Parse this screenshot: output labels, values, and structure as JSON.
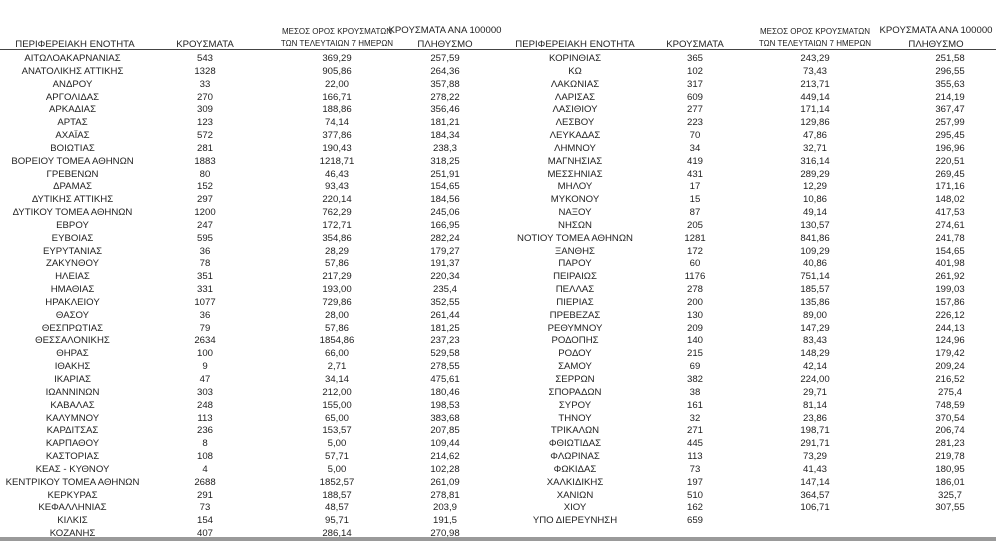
{
  "headers": {
    "region": "ΠΕΡΙΦΕΡΕΙΑΚΗ ΕΝΟΤΗΤΑ",
    "cases": "ΚΡΟΥΣΜΑΤΑ",
    "avg_line1": "ΜΕΣΟΣ ΟΡΟΣ ΚΡΟΥΣΜΑΤΩΝ",
    "avg_line2": "ΤΩΝ ΤΕΛΕΥΤΑΙΩΝ 7 ΗΜΕΡΩΝ",
    "per_line1": "ΚΡΟΥΣΜΑΤΑ ΑΝΑ 100000",
    "per_line2": "ΠΛΗΘΥΣΜΟ"
  },
  "left_rows": [
    [
      "ΑΙΤΩΛΟΑΚΑΡΝΑΝΙΑΣ",
      "543",
      "369,29",
      "257,59"
    ],
    [
      "ΑΝΑΤΟΛΙΚΗΣ ΑΤΤΙΚΗΣ",
      "1328",
      "905,86",
      "264,36"
    ],
    [
      "ΑΝΔΡΟΥ",
      "33",
      "22,00",
      "357,88"
    ],
    [
      "ΑΡΓΟΛΙΔΑΣ",
      "270",
      "166,71",
      "278,22"
    ],
    [
      "ΑΡΚΑΔΙΑΣ",
      "309",
      "188,86",
      "356,46"
    ],
    [
      "ΑΡΤΑΣ",
      "123",
      "74,14",
      "181,21"
    ],
    [
      "ΑΧΑΪΑΣ",
      "572",
      "377,86",
      "184,34"
    ],
    [
      "ΒΟΙΩΤΙΑΣ",
      "281",
      "190,43",
      "238,3"
    ],
    [
      "ΒΟΡΕΙΟΥ ΤΟΜΕΑ ΑΘΗΝΩΝ",
      "1883",
      "1218,71",
      "318,25"
    ],
    [
      "ΓΡΕΒΕΝΩΝ",
      "80",
      "46,43",
      "251,91"
    ],
    [
      "ΔΡΑΜΑΣ",
      "152",
      "93,43",
      "154,65"
    ],
    [
      "ΔΥΤΙΚΗΣ ΑΤΤΙΚΗΣ",
      "297",
      "220,14",
      "184,56"
    ],
    [
      "ΔΥΤΙΚΟΥ ΤΟΜΕΑ ΑΘΗΝΩΝ",
      "1200",
      "762,29",
      "245,06"
    ],
    [
      "ΕΒΡΟΥ",
      "247",
      "172,71",
      "166,95"
    ],
    [
      "ΕΥΒΟΙΑΣ",
      "595",
      "354,86",
      "282,24"
    ],
    [
      "ΕΥΡΥΤΑΝΙΑΣ",
      "36",
      "28,29",
      "179,27"
    ],
    [
      "ΖΑΚΥΝΘΟΥ",
      "78",
      "57,86",
      "191,37"
    ],
    [
      "ΗΛΕΙΑΣ",
      "351",
      "217,29",
      "220,34"
    ],
    [
      "ΗΜΑΘΙΑΣ",
      "331",
      "193,00",
      "235,4"
    ],
    [
      "ΗΡΑΚΛΕΙΟΥ",
      "1077",
      "729,86",
      "352,55"
    ],
    [
      "ΘΑΣΟΥ",
      "36",
      "28,00",
      "261,44"
    ],
    [
      "ΘΕΣΠΡΩΤΙΑΣ",
      "79",
      "57,86",
      "181,25"
    ],
    [
      "ΘΕΣΣΑΛΟΝΙΚΗΣ",
      "2634",
      "1854,86",
      "237,23"
    ],
    [
      "ΘΗΡΑΣ",
      "100",
      "66,00",
      "529,58"
    ],
    [
      "ΙΘΑΚΗΣ",
      "9",
      "2,71",
      "278,55"
    ],
    [
      "ΙΚΑΡΙΑΣ",
      "47",
      "34,14",
      "475,61"
    ],
    [
      "ΙΩΑΝΝΙΝΩΝ",
      "303",
      "212,00",
      "180,46"
    ],
    [
      "ΚΑΒΑΛΑΣ",
      "248",
      "155,00",
      "198,53"
    ],
    [
      "ΚΑΛΥΜΝΟΥ",
      "113",
      "65,00",
      "383,68"
    ],
    [
      "ΚΑΡΔΙΤΣΑΣ",
      "236",
      "153,57",
      "207,85"
    ],
    [
      "ΚΑΡΠΑΘΟΥ",
      "8",
      "5,00",
      "109,44"
    ],
    [
      "ΚΑΣΤΟΡΙΑΣ",
      "108",
      "57,71",
      "214,62"
    ],
    [
      "ΚΕΑΣ - ΚΥΘΝΟΥ",
      "4",
      "5,00",
      "102,28"
    ],
    [
      "ΚΕΝΤΡΙΚΟΥ ΤΟΜΕΑ ΑΘΗΝΩΝ",
      "2688",
      "1852,57",
      "261,09"
    ],
    [
      "ΚΕΡΚΥΡΑΣ",
      "291",
      "188,57",
      "278,81"
    ],
    [
      "ΚΕΦΑΛΛΗΝΙΑΣ",
      "73",
      "48,57",
      "203,9"
    ],
    [
      "ΚΙΛΚΙΣ",
      "154",
      "95,71",
      "191,5"
    ],
    [
      "ΚΟΖΑΝΗΣ",
      "407",
      "286,14",
      "270,98"
    ]
  ],
  "right_rows": [
    [
      "ΚΟΡΙΝΘΙΑΣ",
      "365",
      "243,29",
      "251,58"
    ],
    [
      "ΚΩ",
      "102",
      "73,43",
      "296,55"
    ],
    [
      "ΛΑΚΩΝΙΑΣ",
      "317",
      "213,71",
      "355,63"
    ],
    [
      "ΛΑΡΙΣΑΣ",
      "609",
      "449,14",
      "214,19"
    ],
    [
      "ΛΑΣΙΘΙΟΥ",
      "277",
      "171,14",
      "367,47"
    ],
    [
      "ΛΕΣΒΟΥ",
      "223",
      "129,86",
      "257,99"
    ],
    [
      "ΛΕΥΚΑΔΑΣ",
      "70",
      "47,86",
      "295,45"
    ],
    [
      "ΛΗΜΝΟΥ",
      "34",
      "32,71",
      "196,96"
    ],
    [
      "ΜΑΓΝΗΣΙΑΣ",
      "419",
      "316,14",
      "220,51"
    ],
    [
      "ΜΕΣΣΗΝΙΑΣ",
      "431",
      "289,29",
      "269,45"
    ],
    [
      "ΜΗΛΟΥ",
      "17",
      "12,29",
      "171,16"
    ],
    [
      "ΜΥΚΟΝΟΥ",
      "15",
      "10,86",
      "148,02"
    ],
    [
      "ΝΑΞΟΥ",
      "87",
      "49,14",
      "417,53"
    ],
    [
      "ΝΗΣΩΝ",
      "205",
      "130,57",
      "274,61"
    ],
    [
      "ΝΟΤΙΟΥ ΤΟΜΕΑ ΑΘΗΝΩΝ",
      "1281",
      "841,86",
      "241,78"
    ],
    [
      "ΞΑΝΘΗΣ",
      "172",
      "109,29",
      "154,65"
    ],
    [
      "ΠΑΡΟΥ",
      "60",
      "40,86",
      "401,98"
    ],
    [
      "ΠΕΙΡΑΙΩΣ",
      "1176",
      "751,14",
      "261,92"
    ],
    [
      "ΠΕΛΛΑΣ",
      "278",
      "185,57",
      "199,03"
    ],
    [
      "ΠΙΕΡΙΑΣ",
      "200",
      "135,86",
      "157,86"
    ],
    [
      "ΠΡΕΒΕΖΑΣ",
      "130",
      "89,00",
      "226,12"
    ],
    [
      "ΡΕΘΥΜΝΟΥ",
      "209",
      "147,29",
      "244,13"
    ],
    [
      "ΡΟΔΟΠΗΣ",
      "140",
      "83,43",
      "124,96"
    ],
    [
      "ΡΟΔΟΥ",
      "215",
      "148,29",
      "179,42"
    ],
    [
      "ΣΑΜΟΥ",
      "69",
      "42,14",
      "209,24"
    ],
    [
      "ΣΕΡΡΩΝ",
      "382",
      "224,00",
      "216,52"
    ],
    [
      "ΣΠΟΡΑΔΩΝ",
      "38",
      "29,71",
      "275,4"
    ],
    [
      "ΣΥΡΟΥ",
      "161",
      "81,14",
      "748,59"
    ],
    [
      "ΤΗΝΟΥ",
      "32",
      "23,86",
      "370,54"
    ],
    [
      "ΤΡΙΚΑΛΩΝ",
      "271",
      "198,71",
      "206,74"
    ],
    [
      "ΦΘΙΩΤΙΔΑΣ",
      "445",
      "291,71",
      "281,23"
    ],
    [
      "ΦΛΩΡΙΝΑΣ",
      "113",
      "73,29",
      "219,78"
    ],
    [
      "ΦΩΚΙΔΑΣ",
      "73",
      "41,43",
      "180,95"
    ],
    [
      "ΧΑΛΚΙΔΙΚΗΣ",
      "197",
      "147,14",
      "186,01"
    ],
    [
      "ΧΑΝΙΩΝ",
      "510",
      "364,57",
      "325,7"
    ],
    [
      "ΧΙΟΥ",
      "162",
      "106,71",
      "307,55"
    ],
    [
      "ΥΠΟ ΔΙΕΡΕΥΝΗΣΗ",
      "659",
      "",
      ""
    ]
  ]
}
